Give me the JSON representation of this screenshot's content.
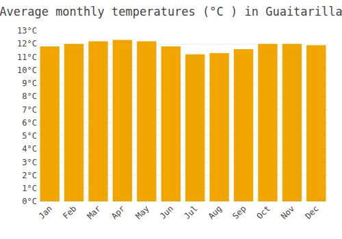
{
  "chart_data": {
    "type": "bar",
    "title": "Average monthly temperatures (°C ) in Guaitarilla",
    "categories": [
      "Jan",
      "Feb",
      "Mar",
      "Apr",
      "May",
      "Jun",
      "Jul",
      "Aug",
      "Sep",
      "Oct",
      "Nov",
      "Dec"
    ],
    "values": [
      11.8,
      12.0,
      12.2,
      12.3,
      12.2,
      11.8,
      11.2,
      11.3,
      11.6,
      12.0,
      12.0,
      11.9
    ],
    "color": "#F0A500",
    "ylim": [
      0,
      13
    ],
    "yticks": [
      {
        "value": 0,
        "label": "0°C"
      },
      {
        "value": 1,
        "label": "1°C"
      },
      {
        "value": 2,
        "label": "2°C"
      },
      {
        "value": 3,
        "label": "3°C"
      },
      {
        "value": 4,
        "label": "4°C"
      },
      {
        "value": 5,
        "label": "5°C"
      },
      {
        "value": 6,
        "label": "6°C"
      },
      {
        "value": 7,
        "label": "7°C"
      },
      {
        "value": 8,
        "label": "8°C"
      },
      {
        "value": 9,
        "label": "9°C"
      },
      {
        "value": 10,
        "label": "10°C"
      },
      {
        "value": 11,
        "label": "11°C"
      },
      {
        "value": 12,
        "label": "12°C"
      },
      {
        "value": 13,
        "label": "13°C"
      }
    ],
    "grid": true
  }
}
